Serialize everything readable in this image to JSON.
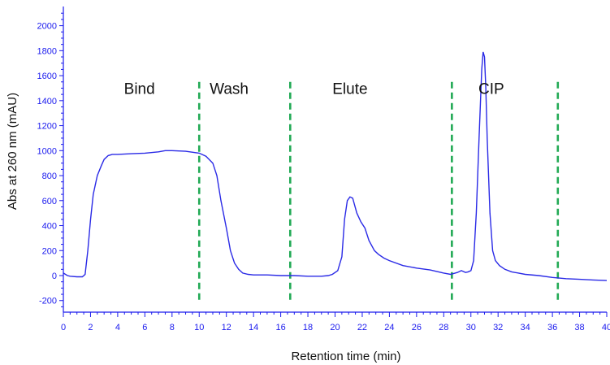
{
  "chart_data": {
    "type": "line",
    "xlabel": "Retention time (min)",
    "ylabel": "Abs at 260 nm (mAU)",
    "xlim": [
      0,
      40
    ],
    "ylim": [
      -300,
      2150
    ],
    "x_ticks": [
      "0",
      "2",
      "4",
      "6",
      "8",
      "10",
      "12",
      "14",
      "16",
      "18",
      "20",
      "22",
      "24",
      "26",
      "28",
      "30",
      "32",
      "34",
      "36",
      "38",
      "40"
    ],
    "y_ticks": [
      "-200",
      "0",
      "200",
      "400",
      "600",
      "800",
      "1000",
      "1200",
      "1400",
      "1600",
      "1800",
      "2000"
    ],
    "grid": false,
    "colors": {
      "trace": "#2a2ae6",
      "axis": "#1a1aee",
      "divider": "#22aa55"
    },
    "phase_dividers": [
      10,
      16.7,
      28.6,
      36.4
    ],
    "phase_labels": [
      {
        "text": "Bind",
        "x": 5.6,
        "y": 1500
      },
      {
        "text": "Wash",
        "x": 12.2,
        "y": 1500
      },
      {
        "text": "Elute",
        "x": 21.1,
        "y": 1500
      },
      {
        "text": "CIP",
        "x": 31.5,
        "y": 1500
      }
    ],
    "series": [
      {
        "x": [
          0,
          0.3,
          0.5,
          1.0,
          1.4,
          1.6,
          1.8,
          2.0,
          2.2,
          2.5,
          2.8,
          3.0,
          3.3,
          3.6,
          4.0,
          5.0,
          6.0,
          7.0,
          7.5,
          8.0,
          9.0,
          10.0,
          10.5,
          11.0,
          11.3,
          11.6,
          12.0,
          12.3,
          12.6,
          12.9,
          13.2,
          13.6,
          14.0,
          15.0,
          16.0,
          17.0,
          18.0,
          19.0,
          19.5,
          19.8,
          20.2,
          20.5,
          20.7,
          20.9,
          21.1,
          21.3,
          21.6,
          21.9,
          22.2,
          22.5,
          22.9,
          23.2,
          23.6,
          24.0,
          25.0,
          26.0,
          27.0,
          28.0,
          28.5,
          29.0,
          29.3,
          29.6,
          29.8,
          30.0,
          30.2,
          30.4,
          30.6,
          30.8,
          30.9,
          31.0,
          31.1,
          31.2,
          31.4,
          31.6,
          31.8,
          32.1,
          32.5,
          33.0,
          34.0,
          35.0,
          36.0,
          37.0,
          38.0,
          39.0,
          40.0
        ],
        "values": [
          20,
          0,
          -5,
          -10,
          -10,
          10,
          200,
          450,
          650,
          800,
          880,
          930,
          960,
          970,
          970,
          975,
          980,
          990,
          1000,
          1000,
          995,
          980,
          955,
          900,
          800,
          600,
          380,
          200,
          100,
          50,
          20,
          10,
          5,
          5,
          0,
          0,
          -5,
          -5,
          0,
          10,
          40,
          150,
          450,
          600,
          630,
          620,
          500,
          430,
          380,
          280,
          200,
          170,
          140,
          120,
          80,
          60,
          45,
          20,
          10,
          25,
          40,
          25,
          30,
          40,
          120,
          500,
          1100,
          1650,
          1790,
          1750,
          1500,
          1100,
          500,
          200,
          120,
          80,
          50,
          30,
          10,
          0,
          -15,
          -25,
          -30,
          -35,
          -40
        ]
      }
    ]
  }
}
